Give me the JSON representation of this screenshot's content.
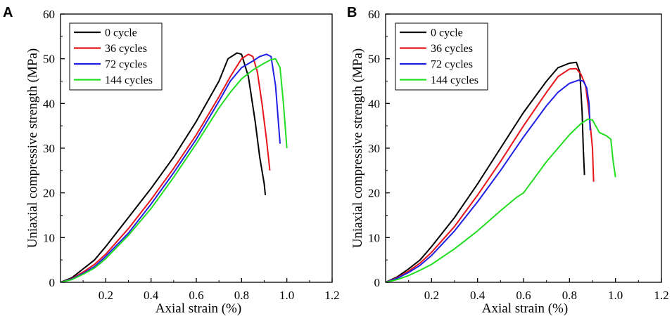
{
  "chart_data": [
    {
      "panel_label": "A",
      "type": "line",
      "xlabel": "Axial strain (%)",
      "ylabel": "Uniaxial compressive strength (MPa)",
      "xlim": [
        0,
        1.2
      ],
      "ylim": [
        0,
        60
      ],
      "xticks": [
        "0.2",
        "0.4",
        "0.6",
        "0.8",
        "1.0",
        "1.2"
      ],
      "yticks": [
        "0",
        "10",
        "20",
        "30",
        "40",
        "50",
        "60"
      ],
      "legend_position": "top-left",
      "series": [
        {
          "name": "0 cycle",
          "color": "#000000",
          "x": [
            0,
            0.05,
            0.1,
            0.15,
            0.2,
            0.3,
            0.4,
            0.5,
            0.6,
            0.7,
            0.74,
            0.78,
            0.8,
            0.83,
            0.86,
            0.88,
            0.9,
            0.905
          ],
          "y": [
            0,
            1,
            3,
            5,
            8,
            14.5,
            21,
            28,
            36,
            45,
            50,
            51.3,
            51,
            46,
            36,
            28,
            22,
            19.5
          ]
        },
        {
          "name": "36 cycles",
          "color": "#e8141c",
          "x": [
            0,
            0.05,
            0.1,
            0.15,
            0.2,
            0.3,
            0.4,
            0.5,
            0.6,
            0.7,
            0.75,
            0.8,
            0.83,
            0.85,
            0.87,
            0.89,
            0.91,
            0.925
          ],
          "y": [
            0,
            0.8,
            2.3,
            4,
            6.3,
            12,
            18.5,
            25.5,
            33,
            41.5,
            46,
            50,
            51,
            50.5,
            47,
            40,
            32,
            25
          ]
        },
        {
          "name": "72 cycles",
          "color": "#1f1fe6",
          "x": [
            0,
            0.05,
            0.1,
            0.15,
            0.2,
            0.3,
            0.4,
            0.5,
            0.6,
            0.7,
            0.75,
            0.8,
            0.85,
            0.88,
            0.91,
            0.93,
            0.95,
            0.97
          ],
          "y": [
            0,
            0.7,
            2,
            3.5,
            5.8,
            11,
            17.5,
            24.5,
            32,
            40.5,
            45,
            48,
            49.5,
            50.5,
            51,
            50.5,
            44,
            31
          ]
        },
        {
          "name": "144 cycles",
          "color": "#22dd22",
          "x": [
            0,
            0.05,
            0.1,
            0.15,
            0.2,
            0.3,
            0.4,
            0.5,
            0.6,
            0.7,
            0.75,
            0.8,
            0.85,
            0.9,
            0.93,
            0.95,
            0.97,
            0.985,
            1.0
          ],
          "y": [
            0,
            0.6,
            1.8,
            3.2,
            5.3,
            10.5,
            16.5,
            23.5,
            31,
            39,
            42.5,
            45.5,
            47.5,
            49,
            49.8,
            50,
            48,
            40,
            30
          ]
        }
      ]
    },
    {
      "panel_label": "B",
      "type": "line",
      "xlabel": "Axial strain (%)",
      "ylabel": "Uniaxial compressive strength (MPa)",
      "xlim": [
        0,
        1.2
      ],
      "ylim": [
        0,
        60
      ],
      "xticks": [
        "0.2",
        "0.4",
        "0.6",
        "0.8",
        "1.0",
        "1.2"
      ],
      "yticks": [
        "0",
        "10",
        "20",
        "30",
        "40",
        "50",
        "60"
      ],
      "legend_position": "top-left",
      "series": [
        {
          "name": "0 cycle",
          "color": "#000000",
          "x": [
            0,
            0.05,
            0.1,
            0.15,
            0.2,
            0.3,
            0.4,
            0.5,
            0.6,
            0.7,
            0.75,
            0.8,
            0.83,
            0.845,
            0.855,
            0.86,
            0.865
          ],
          "y": [
            0,
            1.2,
            3,
            5,
            8,
            14.5,
            22,
            30,
            38,
            45,
            48,
            49,
            49.2,
            47,
            38,
            30,
            24
          ]
        },
        {
          "name": "36 cycles",
          "color": "#e8141c",
          "x": [
            0,
            0.05,
            0.1,
            0.15,
            0.2,
            0.3,
            0.4,
            0.5,
            0.6,
            0.7,
            0.75,
            0.8,
            0.83,
            0.85,
            0.87,
            0.885,
            0.9,
            0.905
          ],
          "y": [
            0,
            1,
            2.5,
            4.3,
            6.7,
            12.5,
            19.5,
            27,
            35,
            42.5,
            46,
            47.7,
            47.8,
            46.5,
            44,
            38,
            30,
            22.5
          ]
        },
        {
          "name": "72 cycles",
          "color": "#1f1fe6",
          "x": [
            0,
            0.05,
            0.1,
            0.15,
            0.2,
            0.3,
            0.4,
            0.5,
            0.6,
            0.7,
            0.75,
            0.8,
            0.84,
            0.86,
            0.875,
            0.885,
            0.89
          ],
          "y": [
            0,
            0.9,
            2.2,
            3.8,
            6,
            11.5,
            18,
            25,
            32.5,
            39.5,
            42.5,
            44.5,
            45.2,
            45,
            43.5,
            40,
            34
          ]
        },
        {
          "name": "144 cycles",
          "color": "#22dd22",
          "x": [
            0,
            0.05,
            0.1,
            0.15,
            0.2,
            0.3,
            0.4,
            0.5,
            0.57,
            0.6,
            0.7,
            0.8,
            0.85,
            0.88,
            0.9,
            0.93,
            0.96,
            0.98,
            0.99,
            1.0
          ],
          "y": [
            0,
            0.6,
            1.5,
            2.7,
            4,
            7.5,
            11.5,
            16,
            19,
            20,
            27,
            33,
            35.5,
            36.5,
            36.3,
            33.5,
            32.8,
            32,
            27,
            23.5
          ]
        }
      ]
    }
  ]
}
